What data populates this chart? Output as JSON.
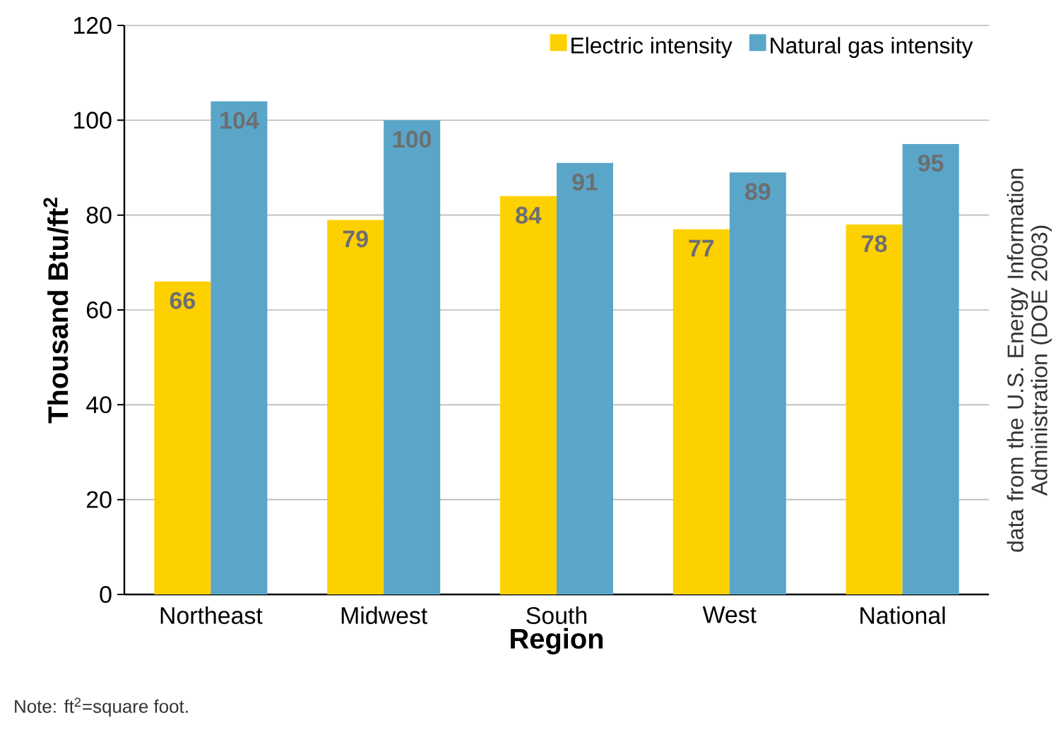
{
  "chart_data": {
    "type": "bar",
    "xlabel": "Region",
    "ylabel": "**Thousand Btu/ft$^{2}$**",
    "categories": [
      "Northeast",
      "Midwest",
      "South",
      "West",
      "National"
    ],
    "series": [
      {
        "name": "Electric intensity",
        "color": "#fdd000",
        "values": [
          66,
          79,
          84,
          77,
          78
        ]
      },
      {
        "name": "Natural gas intensity",
        "color": "#5aa6c8",
        "values": [
          104,
          100,
          91,
          89,
          95
        ]
      }
    ],
    "ylim": [
      0,
      120
    ],
    "yticks": [
      0,
      20,
      40,
      60,
      80,
      100,
      120
    ],
    "grid": "y",
    "legend": "top right",
    "data_labels": true,
    "annotations": [
      "Note: ft$^{2}$=square foot.",
      "data from the U.S. Energy Information Administration (DOE 2003)"
    ]
  }
}
